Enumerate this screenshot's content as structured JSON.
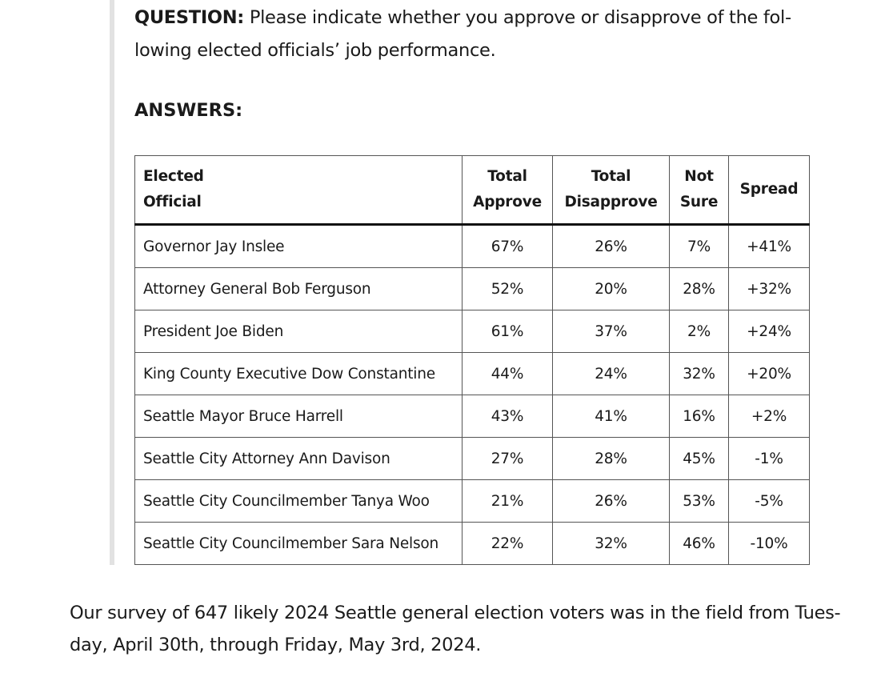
{
  "question": {
    "label": "QUESTION:",
    "text": "Please indicate whether you approve or disapprove of the fol-lowing elected officials’ job performance."
  },
  "answers_heading": "ANSWERS:",
  "table": {
    "headers": {
      "official": "Elected Official",
      "approve": "Total Approve",
      "disapprove": "Total Disapprove",
      "not_sure": "Not Sure",
      "spread": "Spread"
    },
    "rows": [
      {
        "official": "Governor Jay Inslee",
        "approve": "67%",
        "disapprove": "26%",
        "not_sure": "7%",
        "spread": "+41%"
      },
      {
        "official": "Attorney General Bob Ferguson",
        "approve": "52%",
        "disapprove": "20%",
        "not_sure": "28%",
        "spread": "+32%"
      },
      {
        "official": "President Joe Biden",
        "approve": "61%",
        "disapprove": "37%",
        "not_sure": "2%",
        "spread": "+24%"
      },
      {
        "official": "King County Executive Dow Constantine",
        "approve": "44%",
        "disapprove": "24%",
        "not_sure": "32%",
        "spread": "+20%"
      },
      {
        "official": "Seattle Mayor Bruce Harrell",
        "approve": "43%",
        "disapprove": "41%",
        "not_sure": "16%",
        "spread": "+2%"
      },
      {
        "official": "Seattle City Attorney Ann Davison",
        "approve": "27%",
        "disapprove": "28%",
        "not_sure": "45%",
        "spread": "-1%"
      },
      {
        "official": "Seattle City Councilmember Tanya Woo",
        "approve": "21%",
        "disapprove": "26%",
        "not_sure": "53%",
        "spread": "-5%"
      },
      {
        "official": "Seattle City Councilmember Sara Nelson",
        "approve": "22%",
        "disapprove": "32%",
        "not_sure": "46%",
        "spread": "-10%"
      }
    ]
  },
  "footnote": "Our survey of 647 likely 2024 Seattle general election voters was in the field from Tues-day, April 30th, through Friday, May 3rd, 2024."
}
